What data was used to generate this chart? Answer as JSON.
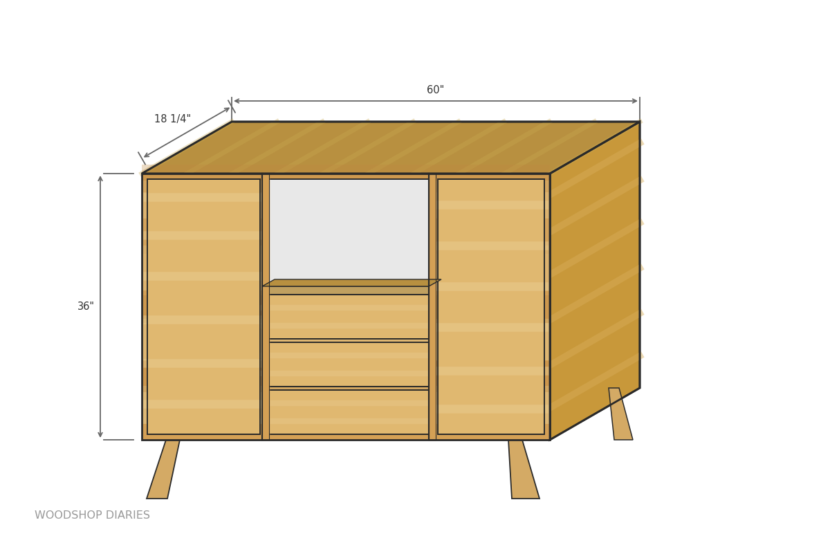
{
  "bg_color": "#ffffff",
  "wood_face_base": "#d4a055",
  "wood_face_light": "#e0b870",
  "wood_face_stripe_light": "#e8cc90",
  "wood_face_stripe_dark": "#c08840",
  "wood_face_stripe_mid": "#d4aa65",
  "wood_top_base": "#b89040",
  "wood_top_light": "#c8a850",
  "wood_side_base": "#c8983a",
  "wood_side_light": "#d8ae5a",
  "wood_inner_shelf": "#c0a060",
  "wood_leg": "#d4aa65",
  "wood_leg_dark": "#b88c40",
  "outline_color": "#2a2a2a",
  "dim_line_color": "#666666",
  "dim_text_color": "#333333",
  "watermark_color": "#999999",
  "open_area_color": "#e8e8e8",
  "dim_18": "18 1/4\"",
  "dim_60": "60\"",
  "dim_36": "36\"",
  "watermark": "WOODSHOP DIARIES",
  "fig_width": 12.0,
  "fig_height": 7.91
}
